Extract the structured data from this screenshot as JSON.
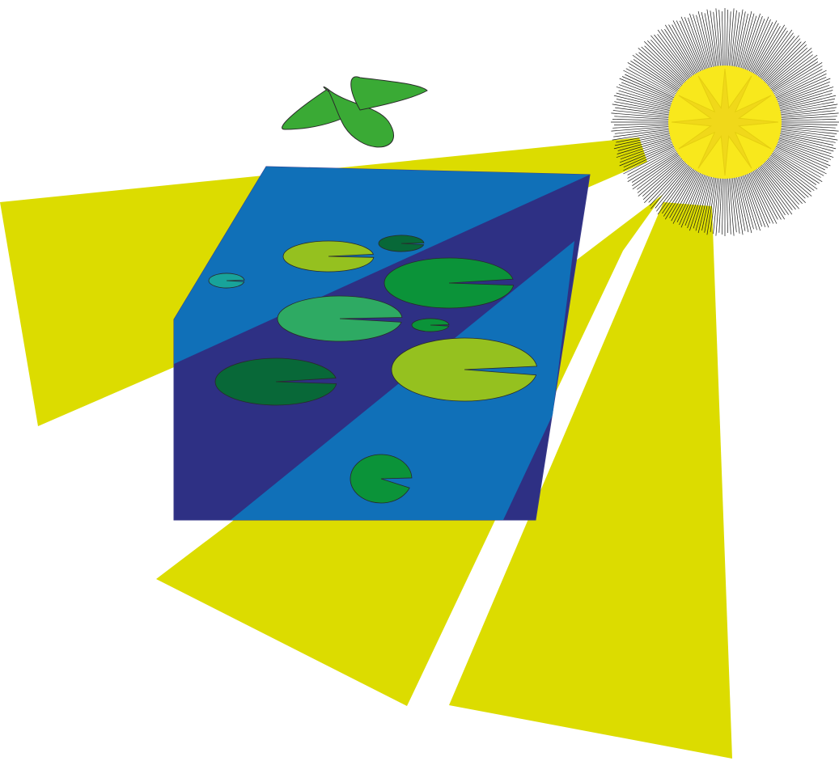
{
  "scene": {
    "description_name": "pond-with-lily-pads-under-sun",
    "colors": {
      "background": "#ffffff",
      "sun_rays": "#dcdc00",
      "sun_core": "#f8e81c",
      "sun_star": "#f0d81a",
      "sun_burst_lines": "#1a1a1a",
      "pond_light": "#1070b8",
      "pond_dark": "#2e3084",
      "butterfly": "#3aaa35",
      "lily_lime": "#95c11f",
      "lily_green": "#0b9339",
      "lily_mint": "#2eaa63",
      "lily_dark": "#086838",
      "lily_teal": "#18a39a",
      "outline": "#2a2a2a"
    },
    "lily_pads": [
      {
        "name": "lily-pad-lime-top",
        "color": "lily_lime"
      },
      {
        "name": "lily-pad-dark-small-top",
        "color": "lily_dark"
      },
      {
        "name": "lily-pad-teal-left",
        "color": "lily_teal"
      },
      {
        "name": "lily-pad-green-large",
        "color": "lily_green"
      },
      {
        "name": "lily-pad-mint-center",
        "color": "lily_mint"
      },
      {
        "name": "lily-pad-green-tiny",
        "color": "lily_green"
      },
      {
        "name": "lily-pad-dark-left",
        "color": "lily_dark"
      },
      {
        "name": "lily-pad-lime-right",
        "color": "lily_lime"
      },
      {
        "name": "lily-pad-green-bottom",
        "color": "lily_green"
      }
    ]
  }
}
